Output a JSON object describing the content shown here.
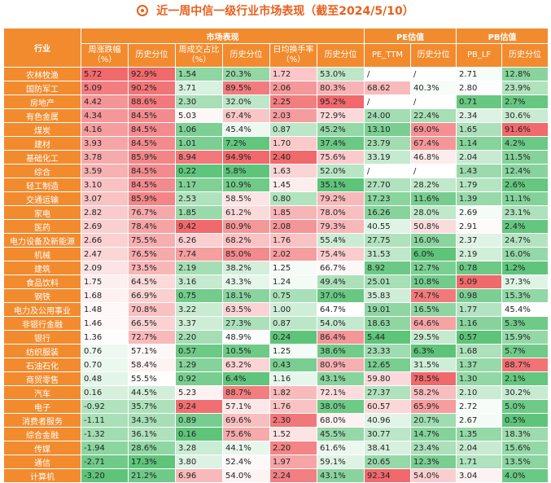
{
  "title": "近一周中信一级行业市场表现（截至2024/5/10）",
  "header": {
    "industry": "行业",
    "groups": {
      "market": "市场表现",
      "pe": "PE估值",
      "pb": "PB估值"
    },
    "cols": [
      "周涨跌幅\n（%）",
      "历史分位",
      "周成交占比\n（%）",
      "历史分位",
      "日均换手率\n（%）",
      "历史分位",
      "PE_TTM",
      "历史分位",
      "PB_LF",
      "历史分位"
    ]
  },
  "colors": {
    "header": "#f28b2e",
    "red_strong": "#f0696c",
    "green_strong": "#5ec47a"
  },
  "rows": [
    [
      "农林牧渔",
      "5.72",
      "92.9%",
      "1.54",
      "20.3%",
      "1.72",
      "53.0%",
      "/",
      "/",
      "2.71",
      "12.8%"
    ],
    [
      "国防军工",
      "5.09",
      "90.2%",
      "3.71",
      "89.5%",
      "2.06",
      "80.3%",
      "68.62",
      "40.3%",
      "2.80",
      "23.9%"
    ],
    [
      "房地产",
      "4.42",
      "88.6%",
      "2.30",
      "32.0%",
      "2.25",
      "95.2%",
      "/",
      "/",
      "0.71",
      "2.7%"
    ],
    [
      "有色金属",
      "4.34",
      "84.5%",
      "5.03",
      "67.4%",
      "2.03",
      "72.9%",
      "24.00",
      "22.4%",
      "2.34",
      "30.6%"
    ],
    [
      "煤炭",
      "4.16",
      "84.5%",
      "1.06",
      "45.4%",
      "0.87",
      "45.2%",
      "13.10",
      "69.0%",
      "1.65",
      "91.6%"
    ],
    [
      "建材",
      "3.93",
      "84.5%",
      "1.01",
      "7.2%",
      "1.70",
      "37.4%",
      "23.79",
      "67.4%",
      "1.14",
      "4.2%"
    ],
    [
      "基础化工",
      "3.78",
      "85.9%",
      "8.94",
      "94.9%",
      "2.40",
      "75.6%",
      "33.19",
      "46.8%",
      "2.04",
      "11.5%"
    ],
    [
      "综合",
      "3.59",
      "84.5%",
      "0.22",
      "5.8%",
      "1.63",
      "52.0%",
      "/",
      "/",
      "1.43",
      "12.4%"
    ],
    [
      "轻工制造",
      "3.10",
      "84.5%",
      "1.17",
      "10.9%",
      "1.45",
      "35.1%",
      "27.70",
      "28.2%",
      "1.79",
      "2.6%"
    ],
    [
      "交通运输",
      "3.07",
      "85.9%",
      "2.53",
      "58.5%",
      "0.80",
      "79.2%",
      "17.23",
      "11.6%",
      "1.39",
      "11.1%"
    ],
    [
      "家电",
      "2.82",
      "76.7%",
      "1.85",
      "61.2%",
      "1.85",
      "78.0%",
      "16.26",
      "28.0%",
      "2.69",
      "23.1%"
    ],
    [
      "医药",
      "2.69",
      "78.4%",
      "9.42",
      "80.9%",
      "2.08",
      "79.3%",
      "40.55",
      "50.8%",
      "2.91",
      "2.4%"
    ],
    [
      "电力设备及新能源",
      "2.66",
      "75.5%",
      "6.26",
      "68.2%",
      "1.76",
      "55.4%",
      "27.75",
      "16.0%",
      "2.37",
      "24.7%"
    ],
    [
      "机械",
      "2.47",
      "76.5%",
      "7.74",
      "85.0%",
      "2.02",
      "75.4%",
      "31.53",
      "6.0%",
      "2.19",
      "16.0%"
    ],
    [
      "建筑",
      "2.09",
      "73.5%",
      "2.19",
      "38.2%",
      "1.25",
      "66.7%",
      "8.92",
      "12.7%",
      "0.78",
      "1.2%"
    ],
    [
      "食品饮料",
      "1.75",
      "64.5%",
      "3.16",
      "43.3%",
      "1.24",
      "49.4%",
      "25.01",
      "10.8%",
      "5.09",
      "37.3%"
    ],
    [
      "钢铁",
      "1.68",
      "66.9%",
      "0.75",
      "18.1%",
      "0.75",
      "37.0%",
      "35.83",
      "74.7%",
      "0.98",
      "15.3%"
    ],
    [
      "电力及公用事业",
      "1.48",
      "70.8%",
      "3.22",
      "63.5%",
      "1.00",
      "64.7%",
      "19.01",
      "16.5%",
      "1.77",
      "45.4%"
    ],
    [
      "非银行金融",
      "1.46",
      "66.5%",
      "3.37",
      "27.3%",
      "0.87",
      "54.0%",
      "18.63",
      "64.6%",
      "1.16",
      "5.3%"
    ],
    [
      "银行",
      "1.36",
      "72.7%",
      "2.20",
      "48.9%",
      "0.24",
      "86.4%",
      "5.44",
      "29.5%",
      "0.57",
      "15.9%"
    ],
    [
      "纺织服装",
      "0.76",
      "57.1%",
      "0.57",
      "10.5%",
      "1.25",
      "38.6%",
      "23.33",
      "6.3%",
      "1.68",
      "5.7%"
    ],
    [
      "石油石化",
      "0.70",
      "58.4%",
      "1.29",
      "63.2%",
      "0.43",
      "80.9%",
      "12.65",
      "31.5%",
      "1.37",
      "88.7%"
    ],
    [
      "商贸零售",
      "0.48",
      "55.5%",
      "0.92",
      "6.4%",
      "1.16",
      "43.1%",
      "59.80",
      "78.5%",
      "1.30",
      "2.1%"
    ],
    [
      "汽车",
      "0.16",
      "44.5%",
      "5.23",
      "88.7%",
      "1.82",
      "72.1%",
      "27.37",
      "58.2%",
      "2.10",
      "30.2%"
    ],
    [
      "电子",
      "-0.92",
      "35.7%",
      "9.24",
      "57.1%",
      "1.76",
      "38.0%",
      "60.57",
      "65.9%",
      "2.72",
      "5.0%"
    ],
    [
      "消费者服务",
      "-1.11",
      "34.3%",
      "0.89",
      "69.6%",
      "2.30",
      "68.0%",
      "40.96",
      "20.7%",
      "2.67",
      "0.5%"
    ],
    [
      "综合金融",
      "-1.32",
      "36.1%",
      "0.16",
      "75.6%",
      "1.52",
      "45.5%",
      "30.77",
      "14.7%",
      "1.35",
      "18.3%"
    ],
    [
      "传媒",
      "-1.94",
      "28.6%",
      "3.28",
      "44.1%",
      "2.20",
      "61.6%",
      "38.41",
      "23.4%",
      "2.04",
      "15.6%"
    ],
    [
      "通信",
      "-2.71",
      "17.3%",
      "3.80",
      "52.4%",
      "1.97",
      "59.1%",
      "20.65",
      "12.3%",
      "1.71",
      "13.5%"
    ],
    [
      "计算机",
      "-3.20",
      "21.2%",
      "6.96",
      "54.0%",
      "2.24",
      "43.1%",
      "92.34",
      "54.0%",
      "3.04",
      "4.0%"
    ]
  ]
}
